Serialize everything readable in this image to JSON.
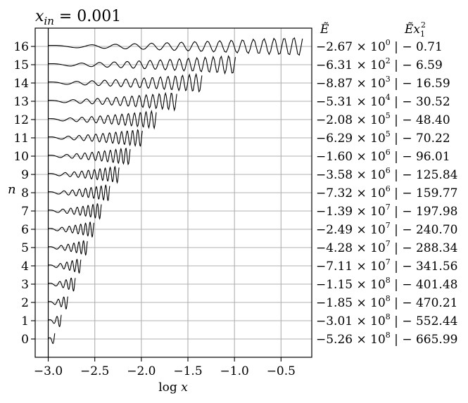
{
  "chart_data": {
    "type": "line",
    "title": "x_in = 0.001",
    "title_parts": {
      "var": "x",
      "sub": "in",
      "rest": " = 0.001"
    },
    "xlabel": "log x",
    "xlabel_parts": {
      "fn": "log ",
      "var": "x"
    },
    "ylabel": "n",
    "xlim": [
      -3.14,
      -0.17
    ],
    "ylim": [
      -1.0,
      17.0
    ],
    "xticks": [
      -3.0,
      -2.5,
      -2.0,
      -1.5,
      -1.0,
      -0.5
    ],
    "xtick_labels": [
      "−3.0",
      "−2.5",
      "−2.0",
      "−1.5",
      "−1.0",
      "−0.5"
    ],
    "yticks": [
      0,
      1,
      2,
      3,
      4,
      5,
      6,
      7,
      8,
      9,
      10,
      11,
      12,
      13,
      14,
      15,
      16
    ],
    "ytick_labels": [
      "0",
      "1",
      "2",
      "3",
      "4",
      "5",
      "6",
      "7",
      "8",
      "9",
      "10",
      "11",
      "12",
      "13",
      "14",
      "15",
      "16"
    ],
    "grid": true,
    "vline_x": -3.0,
    "col_header_1": "Ẽ",
    "col_header_2_parts": {
      "main": "Ẽx",
      "sub": "1",
      "sup": "2"
    },
    "right_labels": [
      {
        "n": 16,
        "mant": "−2.67 × 10",
        "exp": "0",
        "tail": " | − 0.71"
      },
      {
        "n": 15,
        "mant": "−6.31 × 10",
        "exp": "2",
        "tail": " | − 6.59"
      },
      {
        "n": 14,
        "mant": "−8.87 × 10",
        "exp": "3",
        "tail": " | − 16.59"
      },
      {
        "n": 13,
        "mant": "−5.31 × 10",
        "exp": "4",
        "tail": " | − 30.52"
      },
      {
        "n": 12,
        "mant": "−2.08 × 10",
        "exp": "5",
        "tail": " | − 48.40"
      },
      {
        "n": 11,
        "mant": "−6.29 × 10",
        "exp": "5",
        "tail": " | − 70.22"
      },
      {
        "n": 10,
        "mant": "−1.60 × 10",
        "exp": "6",
        "tail": " | − 96.01"
      },
      {
        "n": 9,
        "mant": "−3.58 × 10",
        "exp": "6",
        "tail": " | − 125.84"
      },
      {
        "n": 8,
        "mant": "−7.32 × 10",
        "exp": "6",
        "tail": " | − 159.77"
      },
      {
        "n": 7,
        "mant": "−1.39 × 10",
        "exp": "7",
        "tail": " | − 197.98"
      },
      {
        "n": 6,
        "mant": "−2.49 × 10",
        "exp": "7",
        "tail": " | − 240.70"
      },
      {
        "n": 5,
        "mant": "−4.28 × 10",
        "exp": "7",
        "tail": " | − 288.34"
      },
      {
        "n": 4,
        "mant": "−7.11 × 10",
        "exp": "7",
        "tail": " | − 341.56"
      },
      {
        "n": 3,
        "mant": "−1.15 × 10",
        "exp": "8",
        "tail": " | − 401.48"
      },
      {
        "n": 2,
        "mant": "−1.85 × 10",
        "exp": "8",
        "tail": " | − 470.21"
      },
      {
        "n": 1,
        "mant": "−3.01 × 10",
        "exp": "8",
        "tail": " | − 552.44"
      },
      {
        "n": 0,
        "mant": "−5.26 × 10",
        "exp": "8",
        "tail": " | − 665.99"
      }
    ],
    "series": [
      {
        "n": 0,
        "x_end": -2.93
      },
      {
        "n": 1,
        "x_end": -2.86
      },
      {
        "n": 2,
        "x_end": -2.79
      },
      {
        "n": 3,
        "x_end": -2.71
      },
      {
        "n": 4,
        "x_end": -2.65
      },
      {
        "n": 5,
        "x_end": -2.58
      },
      {
        "n": 6,
        "x_end": -2.51
      },
      {
        "n": 7,
        "x_end": -2.43
      },
      {
        "n": 8,
        "x_end": -2.34
      },
      {
        "n": 9,
        "x_end": -2.24
      },
      {
        "n": 10,
        "x_end": -2.12
      },
      {
        "n": 11,
        "x_end": -1.99
      },
      {
        "n": 12,
        "x_end": -1.84
      },
      {
        "n": 13,
        "x_end": -1.62
      },
      {
        "n": 14,
        "x_end": -1.35
      },
      {
        "n": 15,
        "x_end": -0.99
      },
      {
        "n": 16,
        "x_end": -0.27
      }
    ]
  }
}
